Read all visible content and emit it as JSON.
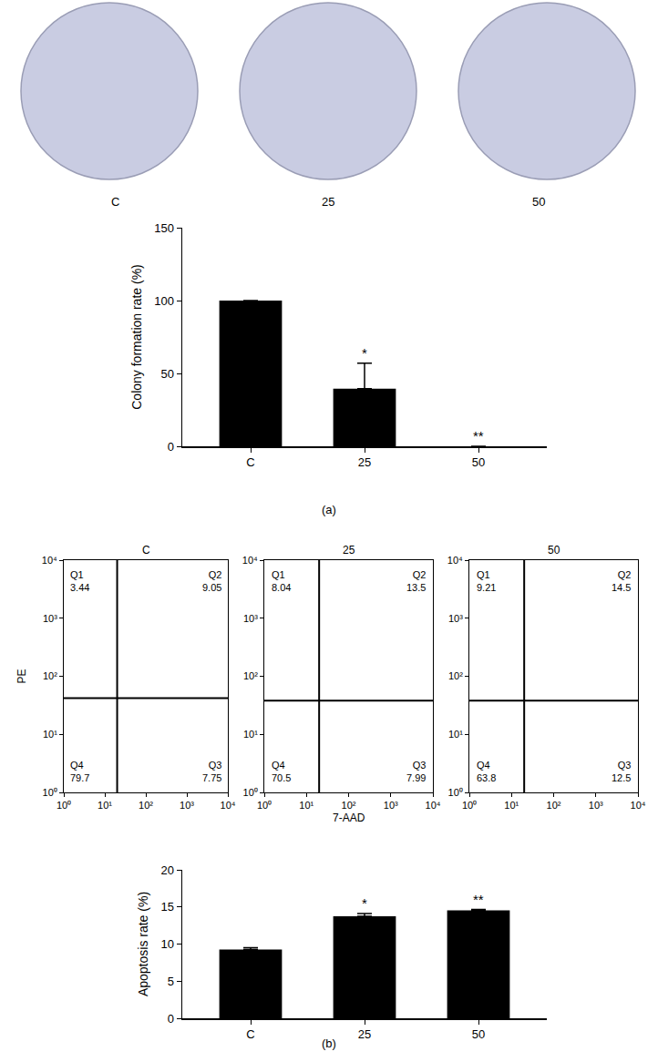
{
  "chart_data": [
    {
      "type": "plates",
      "categories": [
        "C",
        "25",
        "50"
      ],
      "color": "#c9cce2"
    },
    {
      "type": "bar",
      "caption": "(a)",
      "y_label": "Colony formation rate (%)",
      "categories": [
        "C",
        "25",
        "50"
      ],
      "values": [
        100,
        39.5,
        0
      ],
      "error": [
        0,
        17.5,
        0
      ],
      "significance": [
        null,
        "*",
        "**"
      ],
      "color": "#000000",
      "ylim": [
        0,
        150
      ],
      "yticks": [
        0,
        50,
        100,
        150
      ]
    },
    {
      "type": "quadrant",
      "title": "C",
      "y_label": "PE",
      "log": true,
      "xlim": [
        1,
        10000
      ],
      "ylim": [
        1,
        10000
      ],
      "xticks": [
        {
          "value": 1,
          "label": "10⁰"
        },
        {
          "value": 10,
          "label": "10¹"
        },
        {
          "value": 100,
          "label": "10²"
        },
        {
          "value": 1000,
          "label": "10³"
        },
        {
          "value": 10000,
          "label": "10⁴"
        }
      ],
      "yticks": [
        {
          "value": 1,
          "label": "10⁰"
        },
        {
          "value": 10,
          "label": "10¹"
        },
        {
          "value": 100,
          "label": "10²"
        },
        {
          "value": 1000,
          "label": "10³"
        },
        {
          "value": 10000,
          "label": "10⁴"
        }
      ],
      "gate": {
        "x": 20,
        "y": 42
      },
      "quadrants": [
        {
          "name": "Q1",
          "value": 3.44
        },
        {
          "name": "Q2",
          "value": 9.05
        },
        {
          "name": "Q3",
          "value": 7.75
        },
        {
          "name": "Q4",
          "value": 79.7
        }
      ]
    },
    {
      "type": "quadrant",
      "title": "25",
      "x_label": "7-AAD",
      "log": true,
      "xlim": [
        1,
        10000
      ],
      "ylim": [
        1,
        10000
      ],
      "xticks": [
        {
          "value": 1,
          "label": "10⁰"
        },
        {
          "value": 10,
          "label": "10¹"
        },
        {
          "value": 100,
          "label": "10²"
        },
        {
          "value": 1000,
          "label": "10³"
        },
        {
          "value": 10000,
          "label": "10⁴"
        }
      ],
      "yticks": [
        {
          "value": 1,
          "label": "10⁰"
        },
        {
          "value": 10,
          "label": "10¹"
        },
        {
          "value": 100,
          "label": "10²"
        },
        {
          "value": 1000,
          "label": "10³"
        },
        {
          "value": 10000,
          "label": "10⁴"
        }
      ],
      "gate": {
        "x": 20,
        "y": 38
      },
      "quadrants": [
        {
          "name": "Q1",
          "value": 8.04
        },
        {
          "name": "Q2",
          "value": 13.5
        },
        {
          "name": "Q3",
          "value": 7.99
        },
        {
          "name": "Q4",
          "value": 70.5
        }
      ]
    },
    {
      "type": "quadrant",
      "title": "50",
      "log": true,
      "xlim": [
        1,
        10000
      ],
      "ylim": [
        1,
        10000
      ],
      "xticks": [
        {
          "value": 1,
          "label": "10⁰"
        },
        {
          "value": 10,
          "label": "10¹"
        },
        {
          "value": 100,
          "label": "10²"
        },
        {
          "value": 1000,
          "label": "10³"
        },
        {
          "value": 10000,
          "label": "10⁴"
        }
      ],
      "yticks": [
        {
          "value": 1,
          "label": "10⁰"
        },
        {
          "value": 10,
          "label": "10¹"
        },
        {
          "value": 100,
          "label": "10²"
        },
        {
          "value": 1000,
          "label": "10³"
        },
        {
          "value": 10000,
          "label": "10⁴"
        }
      ],
      "gate": {
        "x": 20,
        "y": 38
      },
      "quadrants": [
        {
          "name": "Q1",
          "value": 9.21
        },
        {
          "name": "Q2",
          "value": 14.5
        },
        {
          "name": "Q3",
          "value": 12.5
        },
        {
          "name": "Q4",
          "value": 63.8
        }
      ]
    },
    {
      "type": "bar",
      "caption": "(b)",
      "y_label": "Apoptosis rate (%)",
      "categories": [
        "C",
        "25",
        "50"
      ],
      "values": [
        9.25,
        13.75,
        14.55
      ],
      "error": [
        0.25,
        0.35,
        0.1
      ],
      "significance": [
        null,
        "*",
        "**"
      ],
      "color": "#000000",
      "ylim": [
        0,
        20
      ],
      "yticks": [
        0,
        5,
        10,
        15,
        20
      ]
    }
  ]
}
